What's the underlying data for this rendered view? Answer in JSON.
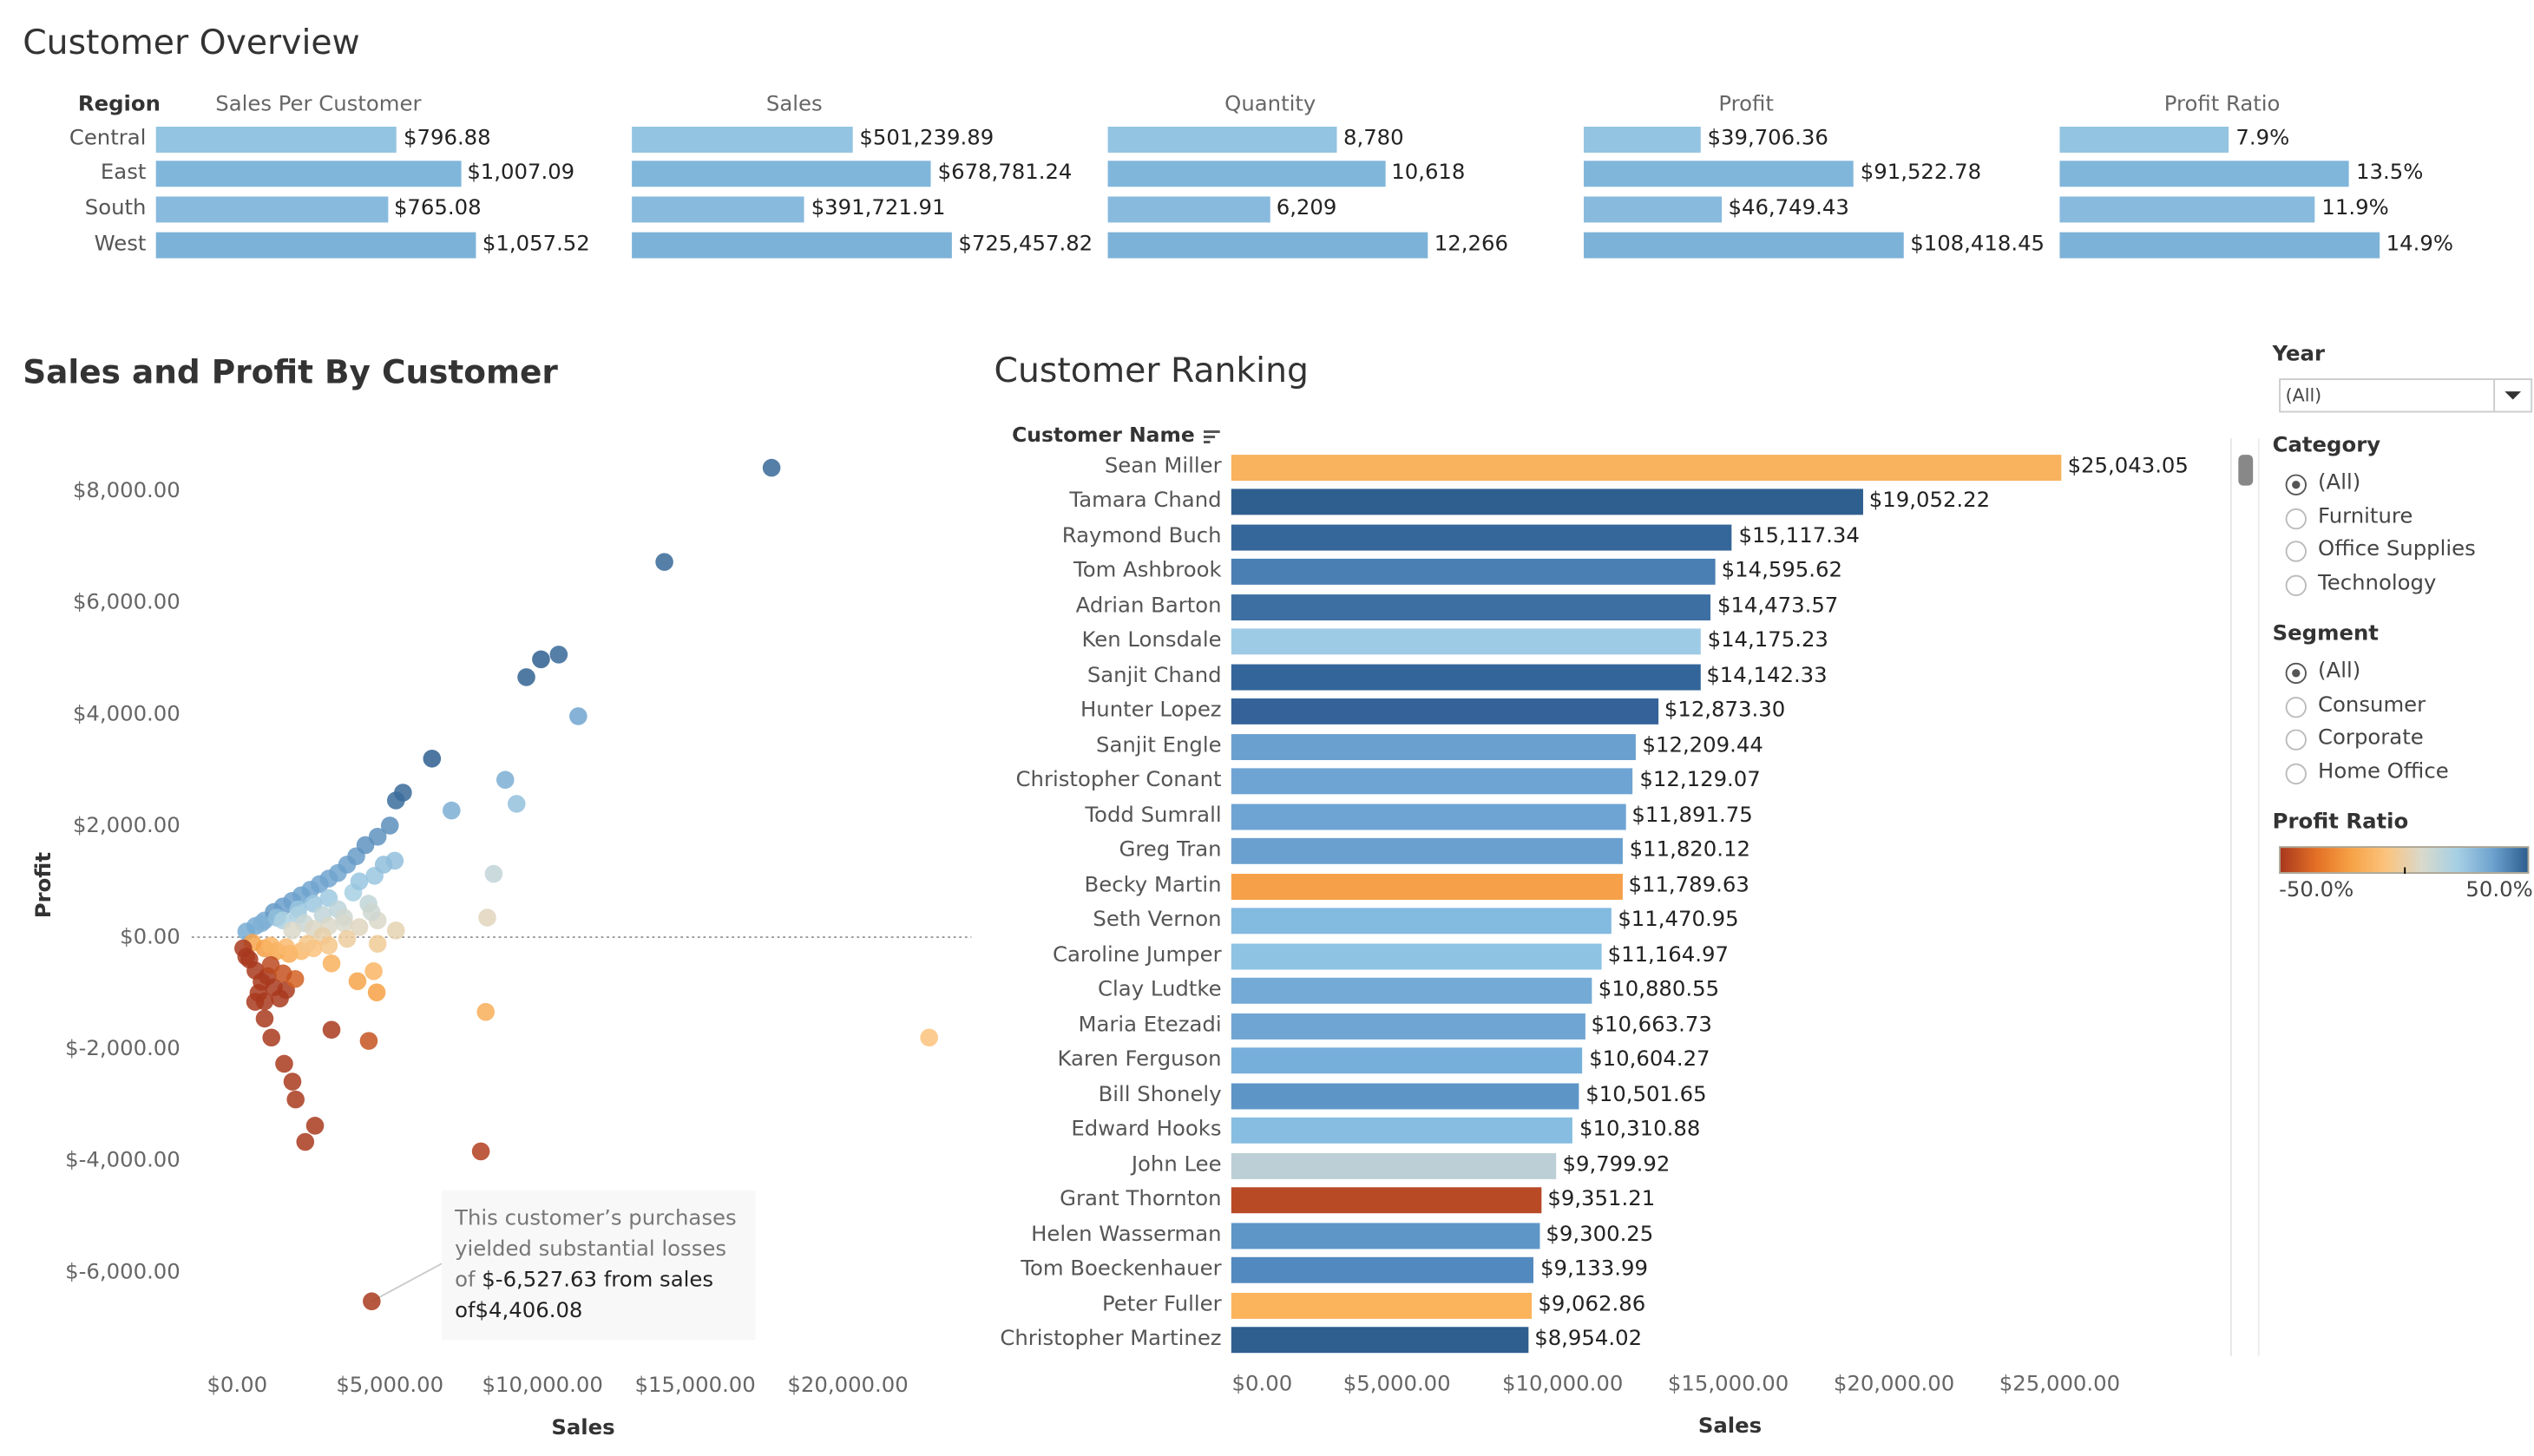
{
  "overview": {
    "title": "Customer Overview",
    "region_header": "Region",
    "columns": [
      "Sales Per Customer",
      "Sales",
      "Quantity",
      "Profit",
      "Profit Ratio"
    ],
    "rows": [
      {
        "region": "Central",
        "color": "#93c4e1",
        "values": [
          "$796.88",
          "$501,239.89",
          "8,780",
          "$39,706.36",
          "7.9%"
        ]
      },
      {
        "region": "East",
        "color": "#81b6db",
        "values": [
          "$1,007.09",
          "$678,781.24",
          "10,618",
          "$91,522.78",
          "13.5%"
        ]
      },
      {
        "region": "South",
        "color": "#88bade",
        "values": [
          "$765.08",
          "$391,721.91",
          "6,209",
          "$46,749.43",
          "11.9%"
        ]
      },
      {
        "region": "West",
        "color": "#7db2d8",
        "values": [
          "$1,057.52",
          "$725,457.82",
          "12,266",
          "$108,418.45",
          "14.9%"
        ]
      }
    ]
  },
  "scatter": {
    "title": "Sales and Profit By Customer",
    "chart_data": {
      "type": "scatter",
      "xlabel": "Sales",
      "ylabel": "Profit",
      "xlim": [
        -1500,
        24000
      ],
      "ylim": [
        -7500,
        9000
      ],
      "x_ticks": [
        {
          "v": 0,
          "label": "$0.00"
        },
        {
          "v": 5000,
          "label": "$5,000.00"
        },
        {
          "v": 10000,
          "label": "$10,000.00"
        },
        {
          "v": 15000,
          "label": "$15,000.00"
        },
        {
          "v": 20000,
          "label": "$20,000.00"
        }
      ],
      "y_ticks": [
        {
          "v": 8000,
          "label": "$8,000.00"
        },
        {
          "v": 6000,
          "label": "$6,000.00"
        },
        {
          "v": 4000,
          "label": "$4,000.00"
        },
        {
          "v": 2000,
          "label": "$2,000.00"
        },
        {
          "v": 0,
          "label": "$0.00"
        },
        {
          "v": -2000,
          "label": "$-2,000.00"
        },
        {
          "v": -4000,
          "label": "$-4,000.00"
        },
        {
          "v": -6000,
          "label": "$-6,000.00"
        }
      ],
      "zero_line": true,
      "color_by": "profit ratio",
      "points": [
        [
          17500,
          8413
        ],
        [
          13990,
          6725
        ],
        [
          10530,
          5065
        ],
        [
          9950,
          4980
        ],
        [
          9470,
          4660
        ],
        [
          11170,
          3960
        ],
        [
          6380,
          3200
        ],
        [
          8780,
          2820
        ],
        [
          9150,
          2390
        ],
        [
          5430,
          2590
        ],
        [
          5200,
          2450
        ],
        [
          7020,
          2270
        ],
        [
          5160,
          1370
        ],
        [
          8400,
          1135
        ],
        [
          8190,
          350
        ],
        [
          22660,
          -1800
        ],
        [
          8140,
          -1340
        ],
        [
          7980,
          -3840
        ],
        [
          4406.08,
          -6527.63
        ],
        [
          4310,
          -1860
        ],
        [
          3090,
          -1660
        ],
        [
          4570,
          -990
        ],
        [
          3940,
          -790
        ],
        [
          4470,
          -610
        ],
        [
          3090,
          -470
        ],
        [
          2550,
          -3380
        ],
        [
          2230,
          -3670
        ],
        [
          1915,
          -2910
        ],
        [
          1810,
          -2590
        ],
        [
          1540,
          -2270
        ],
        [
          1120,
          -1800
        ],
        [
          900,
          -1460
        ],
        [
          590,
          -1160
        ],
        [
          300,
          100
        ],
        [
          600,
          200
        ],
        [
          900,
          300
        ],
        [
          1200,
          450
        ],
        [
          1500,
          550
        ],
        [
          1800,
          650
        ],
        [
          2100,
          750
        ],
        [
          2400,
          850
        ],
        [
          2700,
          950
        ],
        [
          3000,
          1050
        ],
        [
          3300,
          1150
        ],
        [
          3600,
          1300
        ],
        [
          3900,
          1450
        ],
        [
          4200,
          1650
        ],
        [
          4600,
          1800
        ],
        [
          5000,
          2000
        ],
        [
          800,
          250
        ],
        [
          1300,
          350
        ],
        [
          2000,
          500
        ],
        [
          1500,
          300
        ],
        [
          2000,
          400
        ],
        [
          2500,
          600
        ],
        [
          3000,
          700
        ],
        [
          3300,
          500
        ],
        [
          3800,
          800
        ],
        [
          4000,
          1000
        ],
        [
          4500,
          1100
        ],
        [
          4800,
          1300
        ],
        [
          2800,
          400
        ],
        [
          3500,
          350
        ],
        [
          4300,
          600
        ],
        [
          2200,
          250
        ],
        [
          2500,
          150
        ],
        [
          3000,
          200
        ],
        [
          3500,
          250
        ],
        [
          4000,
          180
        ],
        [
          4600,
          300
        ],
        [
          5200,
          120
        ],
        [
          4400,
          450
        ],
        [
          1800,
          120
        ],
        [
          2800,
          20
        ],
        [
          3600,
          -30
        ],
        [
          4600,
          -120
        ],
        [
          500,
          -100
        ],
        [
          900,
          -200
        ],
        [
          1300,
          -250
        ],
        [
          1700,
          -300
        ],
        [
          2100,
          -250
        ],
        [
          2500,
          -200
        ],
        [
          1100,
          -150
        ],
        [
          1600,
          -180
        ],
        [
          2300,
          -120
        ],
        [
          3000,
          -150
        ],
        [
          200,
          -200
        ],
        [
          400,
          -400
        ],
        [
          600,
          -600
        ],
        [
          800,
          -800
        ],
        [
          1000,
          -700
        ],
        [
          1200,
          -900
        ],
        [
          700,
          -1000
        ],
        [
          1400,
          -1100
        ],
        [
          1600,
          -950
        ],
        [
          1900,
          -750
        ],
        [
          1100,
          -500
        ],
        [
          1500,
          -650
        ],
        [
          300,
          -350
        ],
        [
          900,
          -1150
        ]
      ]
    },
    "annotation": {
      "line1": "This customer’s purchases",
      "line2": "yielded substantial losses",
      "of1": "of",
      "loss": "$-6,527.63",
      "from": "from sales",
      "of2": "of",
      "sales": "$4,406.08"
    }
  },
  "ranking": {
    "title": "Customer Ranking",
    "column_header": "Customer Name",
    "sort_icon": "sort-descending-icon",
    "chart_data": {
      "type": "bar",
      "orientation": "horizontal",
      "xlabel": "Sales",
      "xlim": [
        0,
        30000
      ],
      "x_ticks": [
        {
          "v": 0,
          "label": "$0.00"
        },
        {
          "v": 5000,
          "label": "$5,000.00"
        },
        {
          "v": 10000,
          "label": "$10,000.00"
        },
        {
          "v": 15000,
          "label": "$15,000.00"
        },
        {
          "v": 20000,
          "label": "$20,000.00"
        },
        {
          "v": 25000,
          "label": "$25,000.00"
        }
      ],
      "bars": [
        {
          "name": "Sean Miller",
          "label": "$25,043.05",
          "value": 25043.05,
          "color": "#f9b25d"
        },
        {
          "name": "Tamara Chand",
          "label": "$19,052.22",
          "value": 19052.22,
          "color": "#2f5f8f"
        },
        {
          "name": "Raymond Buch",
          "label": "$15,117.34",
          "value": 15117.34,
          "color": "#35679a"
        },
        {
          "name": "Tom Ashbrook",
          "label": "$14,595.62",
          "value": 14595.62,
          "color": "#4a7fb4"
        },
        {
          "name": "Adrian Barton",
          "label": "$14,473.57",
          "value": 14473.57,
          "color": "#3e6fa3"
        },
        {
          "name": "Ken Lonsdale",
          "label": "$14,175.23",
          "value": 14175.23,
          "color": "#9dcbe6"
        },
        {
          "name": "Sanjit Chand",
          "label": "$14,142.33",
          "value": 14142.33,
          "color": "#33659a"
        },
        {
          "name": "Hunter Lopez",
          "label": "$12,873.30",
          "value": 12873.3,
          "color": "#356399"
        },
        {
          "name": "Sanjit Engle",
          "label": "$12,209.44",
          "value": 12209.44,
          "color": "#6aa0d0"
        },
        {
          "name": "Christopher Conant",
          "label": "$12,129.07",
          "value": 12129.07,
          "color": "#6ea4d3"
        },
        {
          "name": "Todd Sumrall",
          "label": "$11,891.75",
          "value": 11891.75,
          "color": "#6ea4d3"
        },
        {
          "name": "Greg Tran",
          "label": "$11,820.12",
          "value": 11820.12,
          "color": "#6aa0cf"
        },
        {
          "name": "Becky Martin",
          "label": "$11,789.63",
          "value": 11789.63,
          "color": "#f6a04a"
        },
        {
          "name": "Seth Vernon",
          "label": "$11,470.95",
          "value": 11470.95,
          "color": "#82bae0"
        },
        {
          "name": "Caroline Jumper",
          "label": "$11,164.97",
          "value": 11164.97,
          "color": "#8ec3e4"
        },
        {
          "name": "Clay Ludtke",
          "label": "$10,880.55",
          "value": 10880.55,
          "color": "#74aad6"
        },
        {
          "name": "Maria Etezadi",
          "label": "$10,663.73",
          "value": 10663.73,
          "color": "#6fa5d3"
        },
        {
          "name": "Karen Ferguson",
          "label": "$10,604.27",
          "value": 10604.27,
          "color": "#77afdb"
        },
        {
          "name": "Bill Shonely",
          "label": "$10,501.65",
          "value": 10501.65,
          "color": "#5e95c7"
        },
        {
          "name": "Edward Hooks",
          "label": "$10,310.88",
          "value": 10310.88,
          "color": "#86bde1"
        },
        {
          "name": "John Lee",
          "label": "$9,799.92",
          "value": 9799.92,
          "color": "#bccfd6"
        },
        {
          "name": "Grant Thornton",
          "label": "$9,351.21",
          "value": 9351.21,
          "color": "#b84a26"
        },
        {
          "name": "Helen Wasserman",
          "label": "$9,300.25",
          "value": 9300.25,
          "color": "#5f96c8"
        },
        {
          "name": "Tom Boeckenhauer",
          "label": "$9,133.99",
          "value": 9133.99,
          "color": "#5289bf"
        },
        {
          "name": "Peter Fuller",
          "label": "$9,062.86",
          "value": 9062.86,
          "color": "#fbb45c"
        },
        {
          "name": "Christopher Martinez",
          "label": "$8,954.02",
          "value": 8954.02,
          "color": "#2f5f8f"
        }
      ]
    }
  },
  "filters": {
    "year": {
      "label": "Year",
      "value": "(All)"
    },
    "category": {
      "label": "Category",
      "options": [
        "(All)",
        "Furniture",
        "Office Supplies",
        "Technology"
      ],
      "selected": 0
    },
    "segment": {
      "label": "Segment",
      "options": [
        "(All)",
        "Consumer",
        "Corporate",
        "Home Office"
      ],
      "selected": 0
    },
    "legend": {
      "label": "Profit Ratio",
      "min_label": "-50.0%",
      "max_label": "50.0%",
      "colors": [
        "#a9391e",
        "#e36f25",
        "#f7a246",
        "#fbc47e",
        "#d9d9cc",
        "#a6d0e4",
        "#6fa3cf",
        "#2e5f8f"
      ]
    }
  }
}
